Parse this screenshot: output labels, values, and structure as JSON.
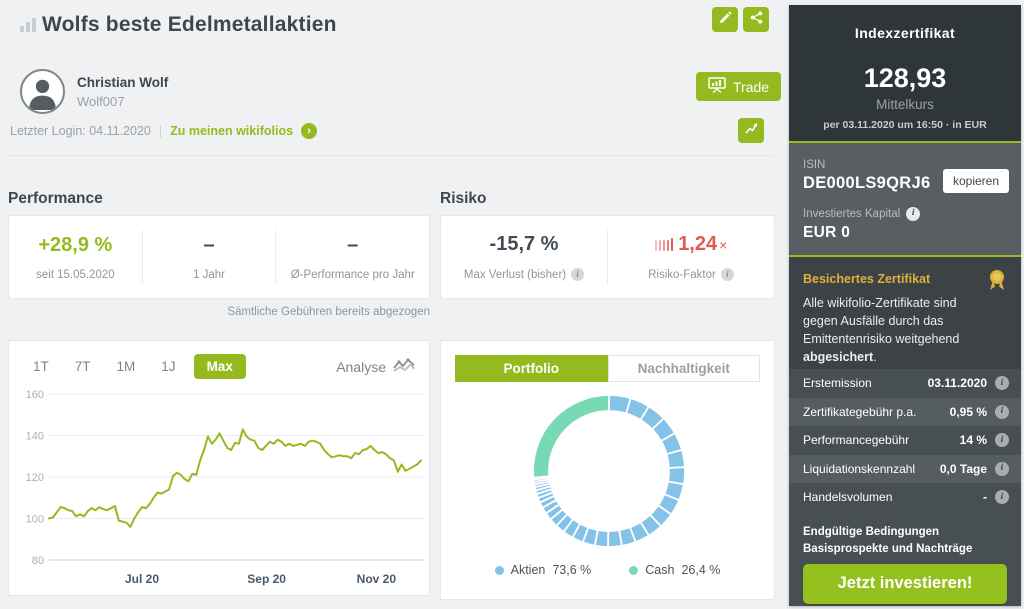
{
  "colors": {
    "accent": "#94ba1f",
    "accent_bright": "#95c11e",
    "negative_red": "#e15b52",
    "donut_aktien": "#84c2e8",
    "donut_cash": "#79d9b5",
    "gold": "#dcb13c",
    "sidebar_dark": "#2f363a"
  },
  "header": {
    "title": "Wolfs beste Edelmetallaktien",
    "trader_name": "Christian Wolf",
    "trader_handle": "Wolf007",
    "last_login": "Letzter Login: 04.11.2020",
    "separator": "|",
    "my_wikifolios_link": "Zu meinen wikifolios",
    "trade_button": "Trade"
  },
  "performance": {
    "section_title": "Performance",
    "items": [
      {
        "value": "+28,9 %",
        "label": "seit 15.05.2020"
      },
      {
        "value": "–",
        "label": "1 Jahr"
      },
      {
        "value": "–",
        "label": "Ø-Performance pro Jahr"
      }
    ],
    "footnote": "Sämtliche Gebühren bereits abgezogen"
  },
  "risk": {
    "section_title": "Risiko",
    "max_loss_value": "-15,7 %",
    "max_loss_label": "Max Verlust (bisher)",
    "risk_factor_value": "1,24",
    "risk_factor_suffix": "×",
    "risk_factor_label": "Risiko-Faktor"
  },
  "chart_card": {
    "ranges": [
      "1T",
      "7T",
      "1M",
      "1J",
      "Max"
    ],
    "active_range": "Max",
    "analyse_label": "Analyse"
  },
  "portfolio": {
    "tabs": [
      "Portfolio",
      "Nachhaltigkeit"
    ],
    "active_tab": "Portfolio",
    "legend": [
      {
        "label": "Aktien",
        "value": "73,6 %"
      },
      {
        "label": "Cash",
        "value": "26,4 %"
      }
    ]
  },
  "chart_data": [
    {
      "type": "line",
      "title": "Performance chart since issue (Max range)",
      "ylim": [
        80,
        160
      ],
      "yticks": [
        160,
        140,
        120,
        100,
        80
      ],
      "x_tick_labels": [
        "Jul 20",
        "Sep 20",
        "Nov 20"
      ],
      "x_tick_positions_pct": [
        25,
        58.5,
        88
      ],
      "x_range": [
        "15.05.2020",
        "03.11.2020"
      ],
      "line_color": "#94ba1f",
      "grid": true,
      "values": [
        100,
        100.5,
        103,
        105.5,
        105,
        104,
        103.5,
        101,
        102,
        101,
        103.5,
        105,
        104,
        105.5,
        104.5,
        104,
        105,
        106,
        99,
        98.5,
        98,
        96,
        100,
        103,
        105.5,
        105,
        107,
        110,
        112.5,
        112,
        113,
        114,
        120.5,
        122,
        121,
        119,
        118,
        121.5,
        121,
        128,
        133,
        139.5,
        136,
        138,
        141,
        137.5,
        134,
        133,
        136.5,
        136,
        143,
        139.5,
        138,
        137.5,
        134,
        133,
        135,
        137,
        136,
        138,
        137,
        135,
        136,
        135,
        135.5,
        136,
        135,
        137,
        137.5,
        137,
        136,
        133,
        131,
        129.5,
        130,
        130.5,
        130,
        130,
        129,
        131.5,
        131,
        133,
        133.5,
        135,
        133,
        131.5,
        132,
        131,
        129,
        128,
        122.5,
        126,
        123,
        124,
        125,
        126,
        128
      ]
    },
    {
      "type": "donut",
      "title": "Portfolio allocation",
      "legend_position": "bottom",
      "series": [
        {
          "name": "Aktien",
          "value": 73.6,
          "color": "#84c2e8",
          "sub_slices": [
            4.6,
            4.2,
            4.0,
            3.9,
            3.8,
            3.7,
            3.6,
            3.5,
            3.4,
            3.3,
            3.2,
            3.1,
            3.0,
            2.9,
            2.8,
            2.6,
            2.4,
            2.2,
            2.0,
            1.8,
            1.6,
            1.4,
            1.2,
            1.0,
            0.9,
            0.8,
            0.7,
            0.6,
            0.55,
            0.5,
            0.35
          ]
        },
        {
          "name": "Cash",
          "value": 26.4,
          "color": "#79d9b5"
        }
      ]
    }
  ],
  "sidebar": {
    "product_type": "Indexzertifikat",
    "price": "128,93",
    "price_label": "Mittelkurs",
    "price_timestamp": "per 03.11.2020 um 16:50 · in EUR",
    "isin_label": "ISIN",
    "isin": "DE000LS9QRJ6",
    "copy_button": "kopieren",
    "invested_label": "Investiertes Kapital",
    "invested_value": "EUR 0",
    "secured_title": "Besichertes Zertifikat",
    "secured_text_1": "Alle wikifolio-Zertifikate sind gegen Ausfälle durch das Emittentenrisiko weitgehend ",
    "secured_text_bold": "abgesichert",
    "secured_text_2": ".",
    "facts": [
      {
        "label": "Erstemission",
        "value": "03.11.2020"
      },
      {
        "label": "Zertifikategebühr p.a.",
        "value": "0,95 %"
      },
      {
        "label": "Performancegebühr",
        "value": "14 %"
      },
      {
        "label": "Liquidationskennzahl",
        "value": "0,0 Tage"
      },
      {
        "label": "Handelsvolumen",
        "value": "-"
      }
    ],
    "links": [
      "Endgültige Bedingungen",
      "Basisprospekte und Nachträge"
    ],
    "invest_button": "Jetzt investieren!"
  }
}
